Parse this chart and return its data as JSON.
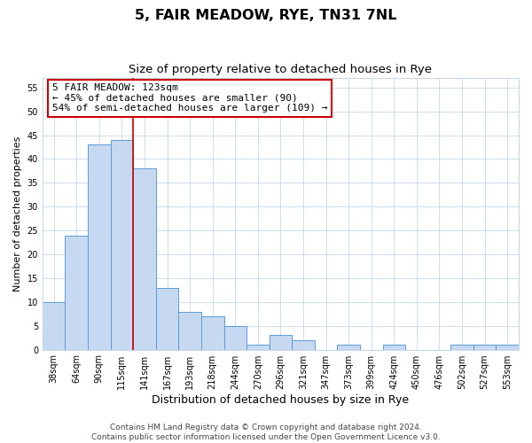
{
  "title": "5, FAIR MEADOW, RYE, TN31 7NL",
  "subtitle": "Size of property relative to detached houses in Rye",
  "xlabel": "Distribution of detached houses by size in Rye",
  "ylabel": "Number of detached properties",
  "bar_labels": [
    "38sqm",
    "64sqm",
    "90sqm",
    "115sqm",
    "141sqm",
    "167sqm",
    "193sqm",
    "218sqm",
    "244sqm",
    "270sqm",
    "296sqm",
    "321sqm",
    "347sqm",
    "373sqm",
    "399sqm",
    "424sqm",
    "450sqm",
    "476sqm",
    "502sqm",
    "527sqm",
    "553sqm"
  ],
  "bar_values": [
    10,
    24,
    43,
    44,
    38,
    13,
    8,
    7,
    5,
    1,
    3,
    2,
    0,
    1,
    0,
    1,
    0,
    0,
    1,
    1,
    1
  ],
  "bar_color": "#c6d9f0",
  "bar_edge_color": "#5b9bd5",
  "vline_x": 3.5,
  "vline_color": "#cc0000",
  "annotation_line1": "5 FAIR MEADOW: 123sqm",
  "annotation_line2": "← 45% of detached houses are smaller (90)",
  "annotation_line3": "54% of semi-detached houses are larger (109) →",
  "annotation_box_color": "#ffffff",
  "annotation_border_color": "#cc0000",
  "ylim": [
    0,
    57
  ],
  "yticks": [
    0,
    5,
    10,
    15,
    20,
    25,
    30,
    35,
    40,
    45,
    50,
    55
  ],
  "footer1": "Contains HM Land Registry data © Crown copyright and database right 2024.",
  "footer2": "Contains public sector information licensed under the Open Government Licence v3.0.",
  "background_color": "#ffffff",
  "grid_color": "#c8d8e8",
  "title_fontsize": 11.5,
  "subtitle_fontsize": 9.5,
  "xlabel_fontsize": 9,
  "ylabel_fontsize": 8,
  "tick_fontsize": 7,
  "annotation_fontsize": 8,
  "footer_fontsize": 6.5
}
